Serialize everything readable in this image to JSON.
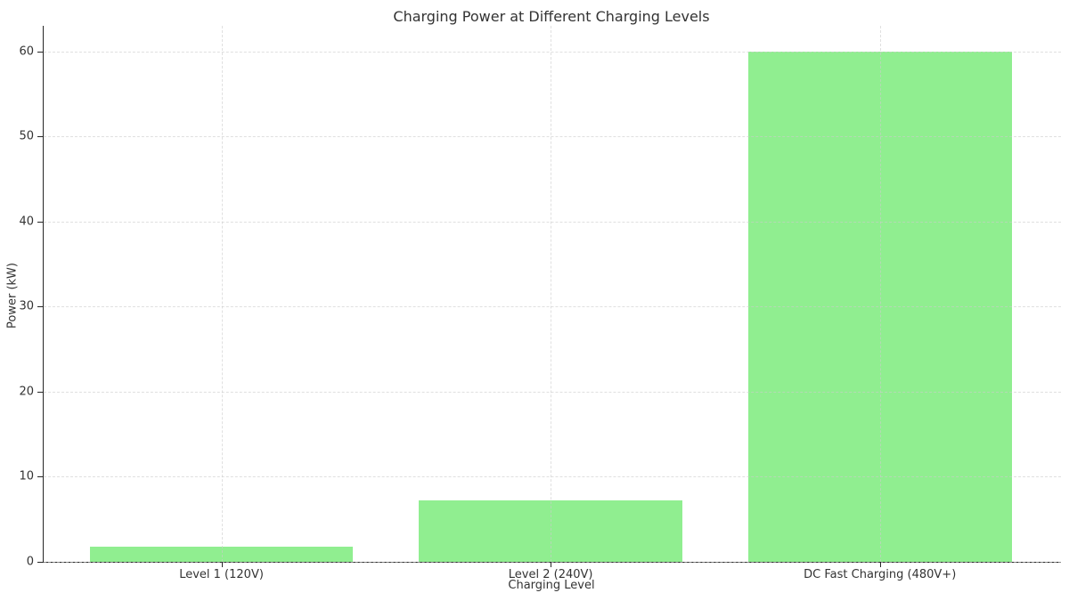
{
  "figure": {
    "background": "#ffffff"
  },
  "chart_data": {
    "type": "bar",
    "title": "Charging Power at Different Charging Levels",
    "xlabel": "Charging Level",
    "ylabel": "Power (kW)",
    "categories": [
      "Level 1 (120V)",
      "Level 2 (240V)",
      "DC Fast Charging (480V+)"
    ],
    "values": [
      1.8,
      7.2,
      60
    ],
    "yticks": [
      0,
      10,
      20,
      30,
      40,
      50,
      60
    ],
    "ylim": [
      0,
      63
    ],
    "xlim": [
      -0.54,
      2.55
    ],
    "bar_width_fraction": 0.8,
    "bar_color": "#90ee90",
    "grid": true,
    "grid_color": "#cccccc",
    "grid_alpha": 0.6,
    "grid_style": "dashed",
    "grid_above_bars": true,
    "axis_color": "#262626",
    "text_color": "#333333",
    "legend": "none",
    "spines": [
      "left",
      "bottom"
    ]
  }
}
